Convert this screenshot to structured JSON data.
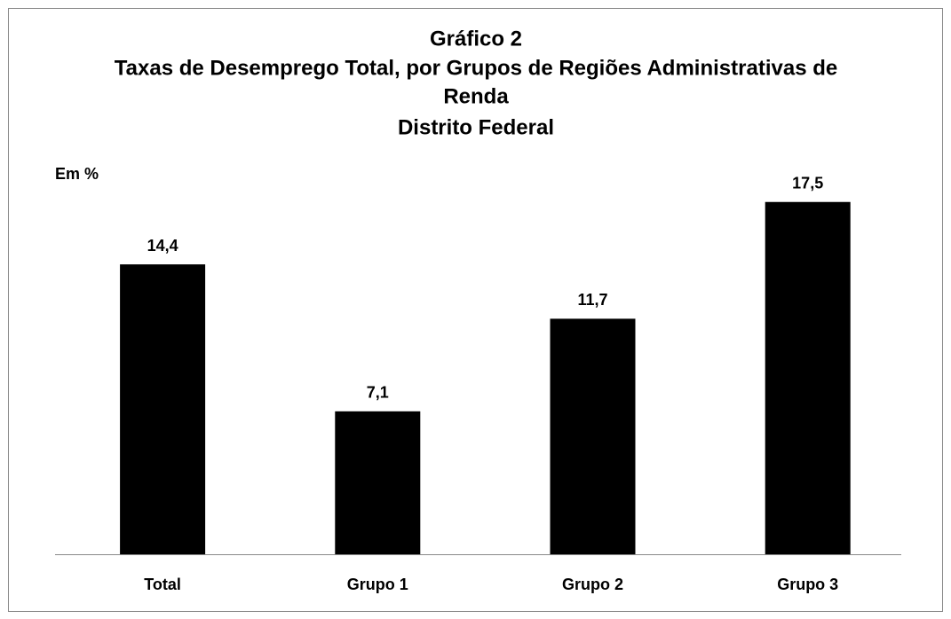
{
  "chart_data": {
    "type": "bar",
    "title": [
      "Gráfico 2",
      "Taxas de Desemprego Total, por Grupos de Regiões Administrativas de",
      "Renda",
      "Distrito Federal"
    ],
    "y_label": "Em %",
    "categories": [
      "Total",
      "Grupo 1",
      "Grupo 2",
      "Grupo 3"
    ],
    "values": [
      14.4,
      7.1,
      11.7,
      17.5
    ],
    "value_labels": [
      "14,4",
      "7,1",
      "11,7",
      "17,5"
    ],
    "color": "#000000",
    "ylim": [
      0,
      20
    ]
  }
}
